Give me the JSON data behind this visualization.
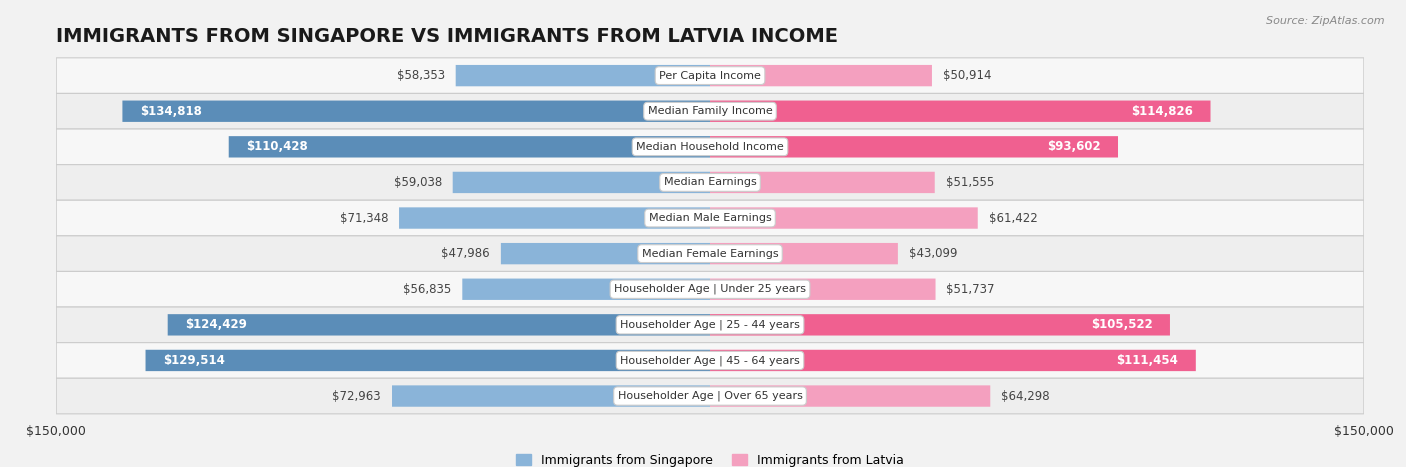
{
  "title": "IMMIGRANTS FROM SINGAPORE VS IMMIGRANTS FROM LATVIA INCOME",
  "source": "Source: ZipAtlas.com",
  "categories": [
    "Per Capita Income",
    "Median Family Income",
    "Median Household Income",
    "Median Earnings",
    "Median Male Earnings",
    "Median Female Earnings",
    "Householder Age | Under 25 years",
    "Householder Age | 25 - 44 years",
    "Householder Age | 45 - 64 years",
    "Householder Age | Over 65 years"
  ],
  "singapore_values": [
    58353,
    134818,
    110428,
    59038,
    71348,
    47986,
    56835,
    124429,
    129514,
    72963
  ],
  "latvia_values": [
    50914,
    114826,
    93602,
    51555,
    61422,
    43099,
    51737,
    105522,
    111454,
    64298
  ],
  "singapore_labels": [
    "$58,353",
    "$134,818",
    "$110,428",
    "$59,038",
    "$71,348",
    "$47,986",
    "$56,835",
    "$124,429",
    "$129,514",
    "$72,963"
  ],
  "latvia_labels": [
    "$50,914",
    "$114,826",
    "$93,602",
    "$51,555",
    "$61,422",
    "$43,099",
    "$51,737",
    "$105,522",
    "$111,454",
    "$64,298"
  ],
  "singapore_color": "#8ab4d9",
  "latvia_color": "#f4a0bf",
  "latvia_color_bright": "#f06090",
  "singapore_color_bright": "#5b8db8",
  "max_value": 150000,
  "bar_height": 0.6,
  "row_colors": [
    "#f7f7f7",
    "#eeeeee"
  ],
  "title_fontsize": 14,
  "label_fontsize": 8.5,
  "category_fontsize": 8.0,
  "legend_fontsize": 9,
  "axis_label_fontsize": 9,
  "sg_large_threshold": 80000,
  "lv_large_threshold": 80000
}
